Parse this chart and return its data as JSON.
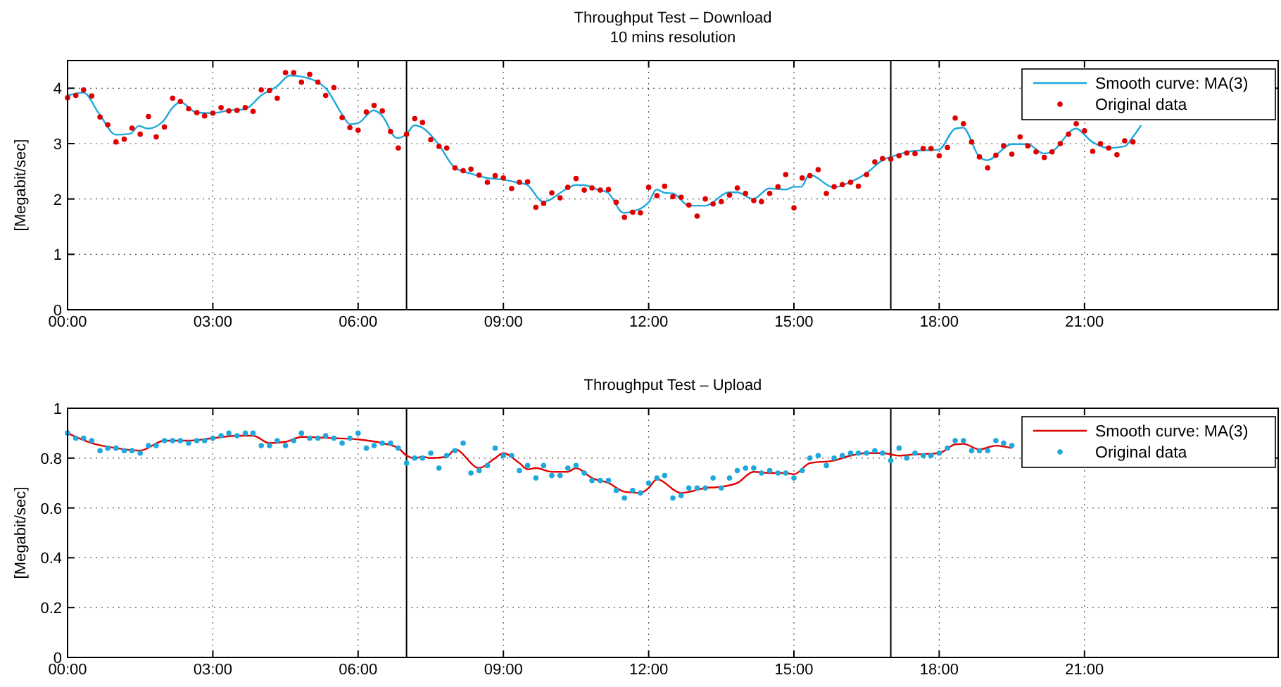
{
  "chart_data": [
    {
      "type": "line",
      "title": "Throughput Test – Download",
      "subtitle": "10 mins resolution",
      "ylabel": "[Megabit/sec]",
      "xlim": [
        0,
        25
      ],
      "ylim": [
        0,
        4.5
      ],
      "xticks": [
        {
          "value": 0,
          "label": "00:00"
        },
        {
          "value": 3,
          "label": "03:00"
        },
        {
          "value": 6,
          "label": "06:00"
        },
        {
          "value": 9,
          "label": "09:00"
        },
        {
          "value": 12,
          "label": "12:00"
        },
        {
          "value": 15,
          "label": "15:00"
        },
        {
          "value": 18,
          "label": "18:00"
        },
        {
          "value": 21,
          "label": "21:00"
        }
      ],
      "yticks": [
        0,
        1,
        2,
        3,
        4
      ],
      "grid": true,
      "legend": "top right",
      "ref_lines": [
        {
          "axis": "x",
          "value": 7,
          "color": "#000000"
        },
        {
          "axis": "x",
          "value": 17,
          "color": "#000000"
        }
      ],
      "series": [
        {
          "name": "Smooth curve: MA(3)",
          "color": "#1ea8dc",
          "x": [
            0,
            0.33,
            0.65,
            1,
            1.3,
            1.47,
            1.66,
            1.98,
            2.16,
            2.33,
            2.66,
            3,
            3.33,
            3.66,
            4,
            4.33,
            4.59,
            4.83,
            5.33,
            5.66,
            5.83,
            6,
            6.32,
            6.49,
            6.8,
            7,
            7.16,
            7.32,
            7.65,
            7.99,
            8.32,
            8.65,
            8.99,
            9.32,
            9.48,
            9.82,
            10.32,
            10.48,
            10.65,
            10.98,
            11.15,
            11.48,
            11.65,
            12,
            12.16,
            12.34,
            12.5,
            12.83,
            13.17,
            13.66,
            13.83,
            14.16,
            14.49,
            14.83,
            15,
            15.15,
            15.32,
            15.82,
            16.15,
            16.49,
            16.83,
            17.15,
            17.49,
            17.99,
            18.33,
            18.49,
            18.83,
            18.99,
            19.5,
            19.82,
            20.16,
            20.32,
            20.82,
            21.16,
            21.5,
            21.83,
            22,
            22.17
          ],
          "values": [
            3.87,
            3.92,
            3.54,
            3.16,
            3.18,
            3.32,
            3.27,
            3.41,
            3.64,
            3.75,
            3.56,
            3.55,
            3.6,
            3.62,
            3.87,
            4.04,
            4.23,
            4.21,
            4,
            3.54,
            3.35,
            3.37,
            3.6,
            3.51,
            3.1,
            3.17,
            3.33,
            3.29,
            3,
            2.57,
            2.46,
            2.38,
            2.35,
            2.29,
            2.26,
            1.95,
            2.19,
            2.25,
            2.25,
            2.16,
            2.12,
            1.75,
            1.77,
            1.94,
            2.17,
            2.11,
            2.1,
            1.88,
            1.88,
            2.12,
            2.12,
            2,
            2.19,
            2.17,
            2.22,
            2.22,
            2.44,
            2.21,
            2.3,
            2.46,
            2.7,
            2.8,
            2.87,
            2.89,
            3.27,
            3.29,
            2.76,
            2.7,
            2.99,
            2.99,
            2.82,
            2.85,
            3.27,
            3.03,
            2.92,
            2.95,
            3.12,
            3.33
          ]
        },
        {
          "name": "Original data",
          "type": "scatter",
          "marker": "circle",
          "color": "#e00000",
          "x": [
            0,
            0.17,
            0.33,
            0.5,
            0.67,
            0.83,
            1,
            1.17,
            1.33,
            1.5,
            1.67,
            1.83,
            2,
            2.17,
            2.33,
            2.5,
            2.67,
            2.83,
            3,
            3.17,
            3.33,
            3.5,
            3.67,
            3.83,
            4,
            4.17,
            4.33,
            4.5,
            4.67,
            4.83,
            5,
            5.17,
            5.33,
            5.5,
            5.67,
            5.83,
            6,
            6.17,
            6.33,
            6.5,
            6.67,
            6.83,
            7,
            7.17,
            7.33,
            7.5,
            7.67,
            7.83,
            8,
            8.17,
            8.33,
            8.5,
            8.67,
            8.83,
            9,
            9.17,
            9.33,
            9.5,
            9.67,
            9.83,
            10,
            10.17,
            10.33,
            10.5,
            10.67,
            10.83,
            11,
            11.17,
            11.33,
            11.5,
            11.67,
            11.83,
            12,
            12.17,
            12.33,
            12.5,
            12.67,
            12.83,
            13,
            13.17,
            13.33,
            13.5,
            13.67,
            13.83,
            14,
            14.17,
            14.33,
            14.5,
            14.67,
            14.83,
            15,
            15.17,
            15.33,
            15.5,
            15.67,
            15.83,
            16,
            16.17,
            16.33,
            16.5,
            16.67,
            16.83,
            17,
            17.17,
            17.33,
            17.5,
            17.67,
            17.83,
            18,
            18.17,
            18.33,
            18.5,
            18.67,
            18.83,
            19,
            19.17,
            19.33,
            19.5,
            19.67,
            19.83,
            20,
            20.17,
            20.33,
            20.5,
            20.67,
            20.83,
            21,
            21.17,
            21.33,
            21.5,
            21.67,
            21.83,
            22
          ],
          "values": [
            3.83,
            3.87,
            3.97,
            3.86,
            3.48,
            3.34,
            3.03,
            3.08,
            3.28,
            3.17,
            3.49,
            3.12,
            3.3,
            3.82,
            3.76,
            3.63,
            3.56,
            3.5,
            3.55,
            3.65,
            3.59,
            3.6,
            3.65,
            3.58,
            3.97,
            3.96,
            3.82,
            4.28,
            4.28,
            4.11,
            4.25,
            4.11,
            3.87,
            4.01,
            3.47,
            3.29,
            3.24,
            3.57,
            3.69,
            3.59,
            3.22,
            2.92,
            3.17,
            3.45,
            3.38,
            3.07,
            2.95,
            2.92,
            2.56,
            2.51,
            2.54,
            2.43,
            2.3,
            2.42,
            2.38,
            2.19,
            2.3,
            2.31,
            1.85,
            1.92,
            2.11,
            2.02,
            2.21,
            2.37,
            2.16,
            2.2,
            2.16,
            2.17,
            1.94,
            1.67,
            1.76,
            1.75,
            2.21,
            2.06,
            2.23,
            2.04,
            2.03,
            1.89,
            1.69,
            2,
            1.91,
            1.95,
            2.07,
            2.2,
            2.1,
            1.97,
            1.95,
            2.1,
            2.22,
            2.44,
            1.84,
            2.38,
            2.42,
            2.53,
            2.1,
            2.22,
            2.26,
            2.3,
            2.23,
            2.44,
            2.67,
            2.73,
            2.72,
            2.78,
            2.83,
            2.82,
            2.91,
            2.91,
            2.78,
            2.93,
            3.46,
            3.36,
            3.03,
            2.76,
            2.56,
            2.79,
            2.96,
            2.81,
            3.12,
            2.96,
            2.85,
            2.75,
            2.85,
            3,
            3.17,
            3.36,
            3.23,
            2.86,
            3,
            2.92,
            2.8,
            3.05,
            3.03
          ]
        }
      ]
    },
    {
      "type": "line",
      "title": "Throughput Test – Upload",
      "ylabel": "[Megabit/sec]",
      "xlim": [
        0,
        25
      ],
      "ylim": [
        0,
        1
      ],
      "xticks": [
        {
          "value": 0,
          "label": "00:00"
        },
        {
          "value": 3,
          "label": "03:00"
        },
        {
          "value": 6,
          "label": "06:00"
        },
        {
          "value": 9,
          "label": "09:00"
        },
        {
          "value": 12,
          "label": "12:00"
        },
        {
          "value": 15,
          "label": "15:00"
        },
        {
          "value": 18,
          "label": "18:00"
        },
        {
          "value": 21,
          "label": "21:00"
        }
      ],
      "yticks": [
        0,
        0.2,
        0.4,
        0.6,
        0.8,
        1
      ],
      "grid": true,
      "legend": "top right",
      "ref_lines": [
        {
          "axis": "x",
          "value": 7,
          "color": "#000000"
        },
        {
          "axis": "x",
          "value": 17,
          "color": "#000000"
        }
      ],
      "series": [
        {
          "name": "Smooth curve: MA(3)",
          "color": "#e00000",
          "x": [
            0,
            0.5,
            1,
            1.5,
            2,
            2.5,
            3,
            3.5,
            3.83,
            4.17,
            4.5,
            4.83,
            5.5,
            6,
            6.5,
            6.83,
            7,
            7.17,
            7.33,
            7.5,
            7.83,
            8,
            8.5,
            8.83,
            9,
            9.33,
            9.5,
            9.67,
            10,
            10.33,
            10.5,
            10.83,
            11.17,
            11.5,
            11.83,
            12,
            12.17,
            12.67,
            13.17,
            13.5,
            13.83,
            14.17,
            14.5,
            14.83,
            15,
            15.33,
            15.83,
            16.17,
            16.5,
            16.83,
            17.17,
            17.5,
            18,
            18.33,
            18.5,
            18.83,
            19.17,
            19.5
          ],
          "values": [
            0.9,
            0.86,
            0.84,
            0.83,
            0.87,
            0.87,
            0.88,
            0.89,
            0.89,
            0.86,
            0.865,
            0.885,
            0.88,
            0.875,
            0.86,
            0.84,
            0.81,
            0.8,
            0.805,
            0.8,
            0.805,
            0.835,
            0.76,
            0.8,
            0.82,
            0.78,
            0.755,
            0.76,
            0.745,
            0.745,
            0.76,
            0.72,
            0.7,
            0.665,
            0.66,
            0.68,
            0.715,
            0.66,
            0.68,
            0.685,
            0.7,
            0.745,
            0.74,
            0.74,
            0.735,
            0.78,
            0.79,
            0.81,
            0.82,
            0.82,
            0.81,
            0.815,
            0.82,
            0.855,
            0.857,
            0.835,
            0.85,
            0.84
          ]
        },
        {
          "name": "Original data",
          "type": "scatter",
          "marker": "circle",
          "color": "#1ea8dc",
          "x": [
            0,
            0.17,
            0.33,
            0.5,
            0.67,
            0.83,
            1,
            1.17,
            1.33,
            1.5,
            1.67,
            1.83,
            2,
            2.17,
            2.33,
            2.5,
            2.67,
            2.83,
            3,
            3.17,
            3.33,
            3.5,
            3.67,
            3.83,
            4,
            4.17,
            4.33,
            4.5,
            4.67,
            4.83,
            5,
            5.17,
            5.33,
            5.5,
            5.67,
            5.83,
            6,
            6.17,
            6.33,
            6.5,
            6.67,
            6.83,
            7,
            7.17,
            7.33,
            7.5,
            7.67,
            7.83,
            8,
            8.17,
            8.33,
            8.5,
            8.67,
            8.83,
            9,
            9.17,
            9.33,
            9.5,
            9.67,
            9.83,
            10,
            10.17,
            10.33,
            10.5,
            10.67,
            10.83,
            11,
            11.17,
            11.33,
            11.5,
            11.67,
            11.83,
            12,
            12.17,
            12.33,
            12.5,
            12.67,
            12.83,
            13,
            13.17,
            13.33,
            13.5,
            13.67,
            13.83,
            14,
            14.17,
            14.33,
            14.5,
            14.67,
            14.83,
            15,
            15.17,
            15.33,
            15.5,
            15.67,
            15.83,
            16,
            16.17,
            16.33,
            16.5,
            16.67,
            16.83,
            17,
            17.17,
            17.33,
            17.5,
            17.67,
            17.83,
            18,
            18.17,
            18.33,
            18.5,
            18.67,
            18.83,
            19,
            19.17,
            19.33,
            19.5
          ],
          "values": [
            0.9,
            0.88,
            0.88,
            0.87,
            0.83,
            0.84,
            0.84,
            0.83,
            0.83,
            0.82,
            0.85,
            0.85,
            0.87,
            0.87,
            0.87,
            0.86,
            0.87,
            0.87,
            0.88,
            0.89,
            0.9,
            0.89,
            0.9,
            0.9,
            0.85,
            0.85,
            0.87,
            0.85,
            0.87,
            0.9,
            0.88,
            0.88,
            0.89,
            0.88,
            0.86,
            0.88,
            0.9,
            0.84,
            0.85,
            0.86,
            0.86,
            0.84,
            0.78,
            0.8,
            0.8,
            0.82,
            0.76,
            0.81,
            0.83,
            0.86,
            0.74,
            0.75,
            0.77,
            0.84,
            0.81,
            0.81,
            0.75,
            0.77,
            0.72,
            0.77,
            0.73,
            0.73,
            0.76,
            0.77,
            0.74,
            0.71,
            0.71,
            0.71,
            0.67,
            0.64,
            0.67,
            0.66,
            0.7,
            0.72,
            0.73,
            0.64,
            0.65,
            0.68,
            0.68,
            0.68,
            0.72,
            0.68,
            0.72,
            0.75,
            0.76,
            0.76,
            0.74,
            0.75,
            0.74,
            0.74,
            0.72,
            0.75,
            0.8,
            0.81,
            0.77,
            0.8,
            0.81,
            0.82,
            0.82,
            0.82,
            0.83,
            0.82,
            0.79,
            0.84,
            0.8,
            0.82,
            0.81,
            0.81,
            0.82,
            0.84,
            0.87,
            0.87,
            0.83,
            0.83,
            0.83,
            0.87,
            0.86,
            0.85
          ]
        }
      ]
    }
  ]
}
